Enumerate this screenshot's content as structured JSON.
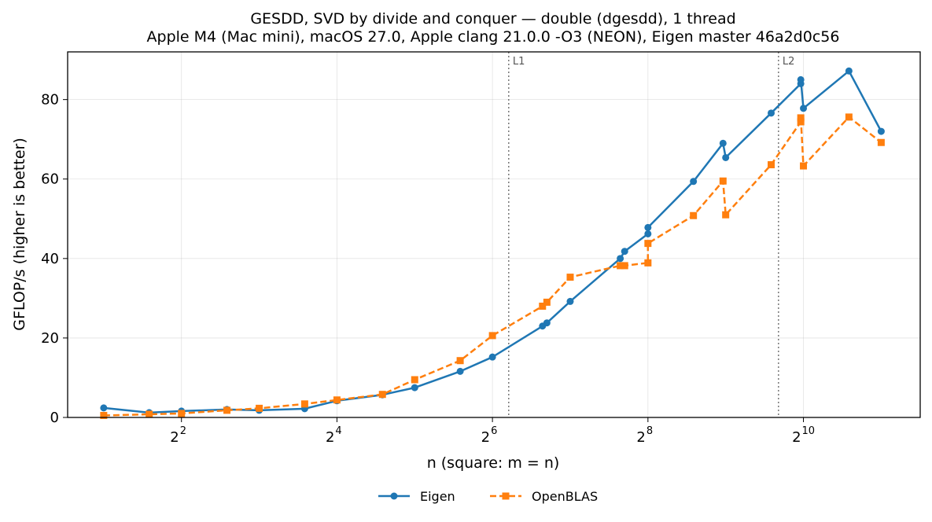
{
  "chart_data": {
    "type": "line",
    "title": "GESDD, SVD by divide and conquer — double (dgesdd), 1 thread",
    "subtitle": "Apple M4 (Mac mini), macOS 27.0, Apple clang 21.0.0 -O3 (NEON), Eigen master 46a2d0c56",
    "xlabel": "n (square: m = n)",
    "ylabel": "GFLOP/s (higher is better)",
    "x_scale": "log2",
    "x_ticks": [
      {
        "base": "2",
        "exp": "2",
        "value": 4
      },
      {
        "base": "2",
        "exp": "4",
        "value": 16
      },
      {
        "base": "2",
        "exp": "6",
        "value": 64
      },
      {
        "base": "2",
        "exp": "8",
        "value": 256
      },
      {
        "base": "2",
        "exp": "10",
        "value": 1024
      }
    ],
    "y_ticks": [
      0,
      20,
      40,
      60,
      80
    ],
    "xlim": [
      1.45,
      2900
    ],
    "ylim": [
      0,
      92
    ],
    "grid": true,
    "legend_placement": "below",
    "cache_lines": [
      {
        "label": "L1",
        "x": 74
      },
      {
        "label": "L2",
        "x": 820
      }
    ],
    "series": [
      {
        "name": "Eigen",
        "color": "#1f77b4",
        "marker": "circle",
        "dash": "solid",
        "x": [
          2,
          3,
          4,
          6,
          8,
          12,
          16,
          24,
          32,
          48,
          64,
          100,
          104,
          128,
          200,
          208,
          256,
          256,
          384,
          500,
          512,
          768,
          1000,
          1000,
          1024,
          1536,
          2048
        ],
        "y": [
          2.4,
          1.2,
          1.6,
          2.0,
          1.8,
          2.2,
          4.2,
          5.7,
          7.5,
          11.6,
          15.2,
          23.0,
          23.8,
          29.2,
          40.0,
          41.8,
          46.2,
          47.8,
          59.4,
          69.0,
          65.4,
          76.6,
          84.0,
          85.0,
          77.8,
          87.2,
          72.0
        ]
      },
      {
        "name": "OpenBLAS",
        "color": "#ff7f0e",
        "marker": "square",
        "dash": "dashed",
        "x": [
          2,
          3,
          4,
          6,
          8,
          12,
          16,
          24,
          32,
          48,
          64,
          100,
          104,
          128,
          200,
          208,
          256,
          256,
          384,
          500,
          512,
          768,
          1000,
          1000,
          1024,
          1536,
          2048
        ],
        "y": [
          0.5,
          0.8,
          1.0,
          1.8,
          2.3,
          3.4,
          4.4,
          5.8,
          9.5,
          14.3,
          20.6,
          28.0,
          29.0,
          35.3,
          38.2,
          38.2,
          38.9,
          43.8,
          50.8,
          59.5,
          51.0,
          63.6,
          74.4,
          75.4,
          63.3,
          75.6,
          69.2
        ]
      }
    ]
  }
}
